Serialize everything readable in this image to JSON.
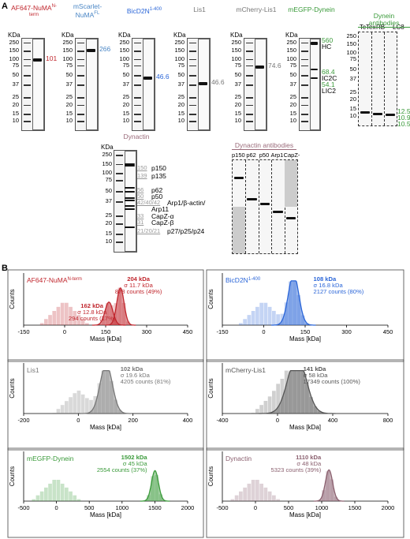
{
  "panel_a": {
    "letter": "A",
    "gels": [
      {
        "title": "AF647-NuMA",
        "title_sup": "N-term",
        "color": "#c0262d",
        "kda": "KDa",
        "ladder": [
          "250",
          "150",
          "100",
          "75",
          "50",
          "37",
          "25",
          "20",
          "15",
          "10"
        ],
        "annotations": [
          {
            "text": "101",
            "color": "#c0262d"
          }
        ]
      },
      {
        "title": "mScarlet-NuMA",
        "title_sup": "FL",
        "color": "#4a86c5",
        "kda": "KDa",
        "ladder": [
          "250",
          "150",
          "100",
          "75",
          "50",
          "37",
          "25",
          "20",
          "15",
          "10"
        ],
        "annotations": [
          {
            "text": "266",
            "color": "#4a86c5"
          }
        ]
      },
      {
        "title": "BicD2N",
        "title_sup": "1-400",
        "color": "#2b66d8",
        "kda": "KDa",
        "ladder": [
          "250",
          "150",
          "100",
          "75",
          "50",
          "37",
          "25",
          "20",
          "15",
          "10"
        ],
        "annotations": [
          {
            "text": "46.6",
            "color": "#2b66d8"
          }
        ]
      },
      {
        "title": "Lis1",
        "title_sup": "",
        "color": "#777777",
        "kda": "KDa",
        "ladder": [
          "250",
          "150",
          "100",
          "75",
          "50",
          "37",
          "25",
          "20",
          "15",
          "10"
        ],
        "annotations": [
          {
            "text": "46.6",
            "color": "#777777"
          }
        ]
      },
      {
        "title": "mCherry-Lis1",
        "title_sup": "",
        "color": "#777777",
        "kda": "KDa",
        "ladder": [
          "250",
          "150",
          "100",
          "75",
          "50",
          "37",
          "25",
          "20",
          "15",
          "10"
        ],
        "annotations": [
          {
            "text": "74.6",
            "color": "#777777"
          }
        ]
      },
      {
        "title": "mEGFP-Dynein",
        "title_sup": "",
        "color": "#3a9a3a",
        "kda": "KDa",
        "ladder": [
          "250",
          "150",
          "100",
          "75",
          "50",
          "37",
          "25",
          "20",
          "15",
          "10"
        ],
        "annotations": [
          {
            "text": "560",
            "color": "#3a9a3a"
          },
          {
            "text": "HC",
            "color": "#000000"
          },
          {
            "text": "68.4",
            "color": "#3a9a3a"
          },
          {
            "text": "IC2C",
            "color": "#000000"
          },
          {
            "text": "54.1",
            "color": "#3a9a3a"
          },
          {
            "text": "LIC2",
            "color": "#000000"
          }
        ]
      }
    ],
    "dynein_antibodies": {
      "title": "Dynein antibodies",
      "color": "#3a9a3a",
      "lanes": [
        "TcTex",
        "RB",
        "LC8"
      ],
      "ladder": [
        "250",
        "150",
        "100",
        "75",
        "50",
        "37",
        "25",
        "20",
        "15",
        "10"
      ],
      "annotations": [
        "12.5",
        "10.9",
        "10.5"
      ]
    },
    "dynactin": {
      "title": "Dynactin",
      "color": "#9a6b7a",
      "kda": "KDa",
      "ladder": [
        "250",
        "150",
        "100",
        "75",
        "50",
        "37",
        "25",
        "20",
        "15",
        "10"
      ],
      "annotations": [
        {
          "num": "150",
          "label": "p150"
        },
        {
          "num": "139",
          "label": "p135"
        },
        {
          "num": "56",
          "label": "p62"
        },
        {
          "num": "50",
          "label": "p50"
        },
        {
          "num": "42/40/42",
          "label": "Arp1/β-actin/"
        },
        {
          "num": "",
          "label": "Arp11"
        },
        {
          "num": "33",
          "label": "CapZ-α"
        },
        {
          "num": "31",
          "label": "CapZ-β"
        },
        {
          "num": "21/20/21",
          "label": "p27/p25/p24"
        }
      ]
    },
    "dynactin_antibodies": {
      "title": "Dynactin antibodies",
      "lanes": [
        "p150",
        "p62",
        "p50",
        "Arp1",
        "CapZ-β"
      ]
    }
  },
  "panel_b": {
    "letter": "B",
    "x_label": "Mass [kDa]",
    "y_label": "Counts"
  },
  "chart_data": [
    {
      "type": "histogram",
      "title": "AF647-NuMA",
      "title_sup": "N-term",
      "color": "#c0262d",
      "xlabel": "Mass [kDa]",
      "ylabel": "Counts",
      "xlim": [
        -150,
        450
      ],
      "xticks": [
        "-150",
        "0",
        "150",
        "300",
        "450"
      ],
      "peaks": [
        {
          "mass": 204,
          "sigma": 11.7,
          "counts": 878,
          "percent": 49
        },
        {
          "mass": 162,
          "sigma": 12.8,
          "counts": 294,
          "percent": 17
        }
      ],
      "labels": [
        {
          "main": "204 kDa",
          "sigma": "σ 11.7 kDa",
          "counts": "878 counts (49%)"
        },
        {
          "main": "162 kDa",
          "sigma": "σ 12.8 kDa",
          "counts": "294 counts (17%)"
        }
      ]
    },
    {
      "type": "histogram",
      "title": "BicD2N",
      "title_sup": "1-400",
      "color": "#2b66d8",
      "xlabel": "Mass [kDa]",
      "ylabel": "Counts",
      "xlim": [
        -150,
        450
      ],
      "xticks": [
        "-150",
        "0",
        "150",
        "300",
        "450"
      ],
      "peaks": [
        {
          "mass": 108,
          "sigma": 16.8,
          "counts": 2127,
          "percent": 80
        }
      ],
      "labels": [
        {
          "main": "108 kDa",
          "sigma": "σ 16.8 kDa",
          "counts": "2127 counts (80%)"
        }
      ]
    },
    {
      "type": "histogram",
      "title": "Lis1",
      "title_sup": "",
      "color": "#777777",
      "xlabel": "Mass [kDa]",
      "ylabel": "Counts",
      "xlim": [
        -200,
        400
      ],
      "xticks": [
        "-200",
        "0",
        "200",
        "400"
      ],
      "peaks": [
        {
          "mass": 102,
          "sigma": 19.6,
          "counts": 4205,
          "percent": 81
        }
      ],
      "labels": [
        {
          "main": "102 kDa",
          "sigma": "σ 19.6 kDa",
          "counts": "4205 counts (81%)"
        }
      ]
    },
    {
      "type": "histogram",
      "title": "mCherry-Lis1",
      "title_sup": "",
      "color": "#555555",
      "xlabel": "Mass [kDa]",
      "ylabel": "Counts",
      "xlim": [
        -400,
        800
      ],
      "xticks": [
        "-400",
        "0",
        "400",
        "800"
      ],
      "peaks": [
        {
          "mass": 141,
          "sigma": 58,
          "counts": 17349,
          "percent": 100
        }
      ],
      "labels": [
        {
          "main": "141 kDa",
          "sigma": "σ 58 kDa",
          "counts": "17349 counts (100%)"
        }
      ]
    },
    {
      "type": "histogram",
      "title": "mEGFP-Dynein",
      "title_sup": "",
      "color": "#3a9a3a",
      "xlabel": "Mass [kDa]",
      "ylabel": "Counts",
      "xlim": [
        -500,
        2000
      ],
      "xticks": [
        "-500",
        "0",
        "500",
        "1000",
        "1500",
        "2000"
      ],
      "peaks": [
        {
          "mass": 1502,
          "sigma": 45,
          "counts": 2554,
          "percent": 37
        }
      ],
      "labels": [
        {
          "main": "1502 kDa",
          "sigma": "σ 45 kDa",
          "counts": "2554 counts (37%)"
        }
      ]
    },
    {
      "type": "histogram",
      "title": "Dynactin",
      "title_sup": "",
      "color": "#8a5f6e",
      "xlabel": "Mass [kDa]",
      "ylabel": "Counts",
      "xlim": [
        -500,
        2000
      ],
      "xticks": [
        "-500",
        "0",
        "500",
        "1000",
        "1500",
        "2000"
      ],
      "peaks": [
        {
          "mass": 1110,
          "sigma": 48,
          "counts": 5323,
          "percent": 39
        }
      ],
      "labels": [
        {
          "main": "1110 kDa",
          "sigma": "σ 48 kDa",
          "counts": "5323 counts (39%)"
        }
      ]
    }
  ]
}
